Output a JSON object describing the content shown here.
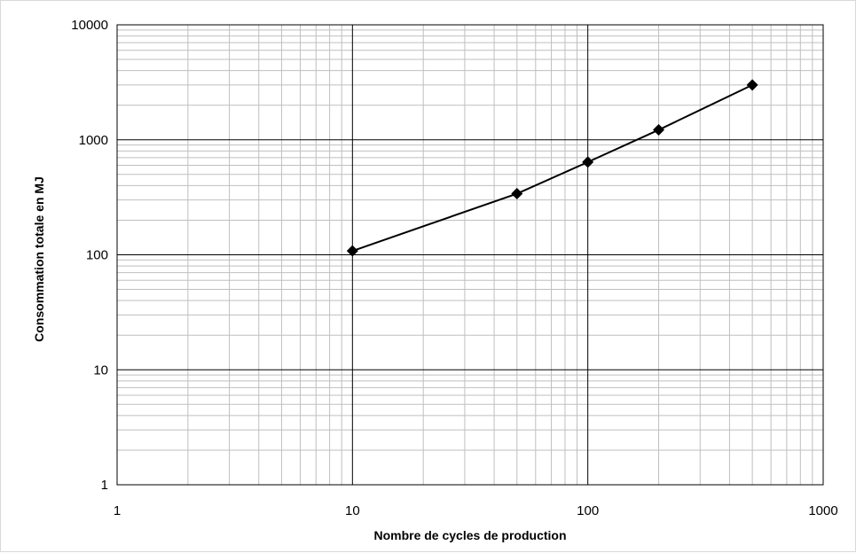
{
  "chart_data": {
    "type": "scatter",
    "title": "",
    "xlabel": "Nombre de cycles de production",
    "ylabel": "Consommation  totale en MJ",
    "x_scale": "log",
    "y_scale": "log",
    "xlim": [
      1,
      1000
    ],
    "ylim": [
      1,
      10000
    ],
    "x_ticks": [
      "1",
      "10",
      "100",
      "1000"
    ],
    "y_ticks": [
      "1",
      "10",
      "100",
      "1000",
      "10000"
    ],
    "grid": "major and minor",
    "legend": "none",
    "line_color": "#000000",
    "marker": "diamond",
    "series": [
      {
        "x": [
          10,
          50,
          100,
          200,
          500
        ],
        "y": [
          108,
          340,
          640,
          1220,
          3000
        ]
      }
    ]
  }
}
